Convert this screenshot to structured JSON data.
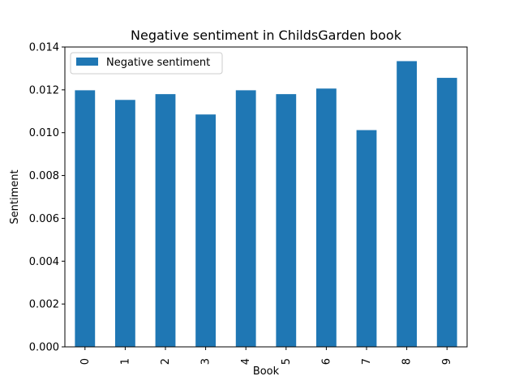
{
  "chart_data": {
    "type": "bar",
    "title": "Negative sentiment in ChildsGarden book",
    "xlabel": "Book",
    "ylabel": "Sentiment",
    "categories": [
      "0",
      "1",
      "2",
      "3",
      "4",
      "5",
      "6",
      "7",
      "8",
      "9"
    ],
    "series": [
      {
        "name": "Negative sentiment",
        "color": "#1f77b4",
        "values": [
          0.01198,
          0.01153,
          0.0118,
          0.01085,
          0.01198,
          0.0118,
          0.01206,
          0.01012,
          0.01334,
          0.01256
        ]
      }
    ],
    "ylim": [
      0,
      0.014
    ],
    "yticks": [
      "0.000",
      "0.002",
      "0.004",
      "0.006",
      "0.008",
      "0.010",
      "0.012",
      "0.014"
    ],
    "grid": false,
    "legend_position": "top-left"
  }
}
